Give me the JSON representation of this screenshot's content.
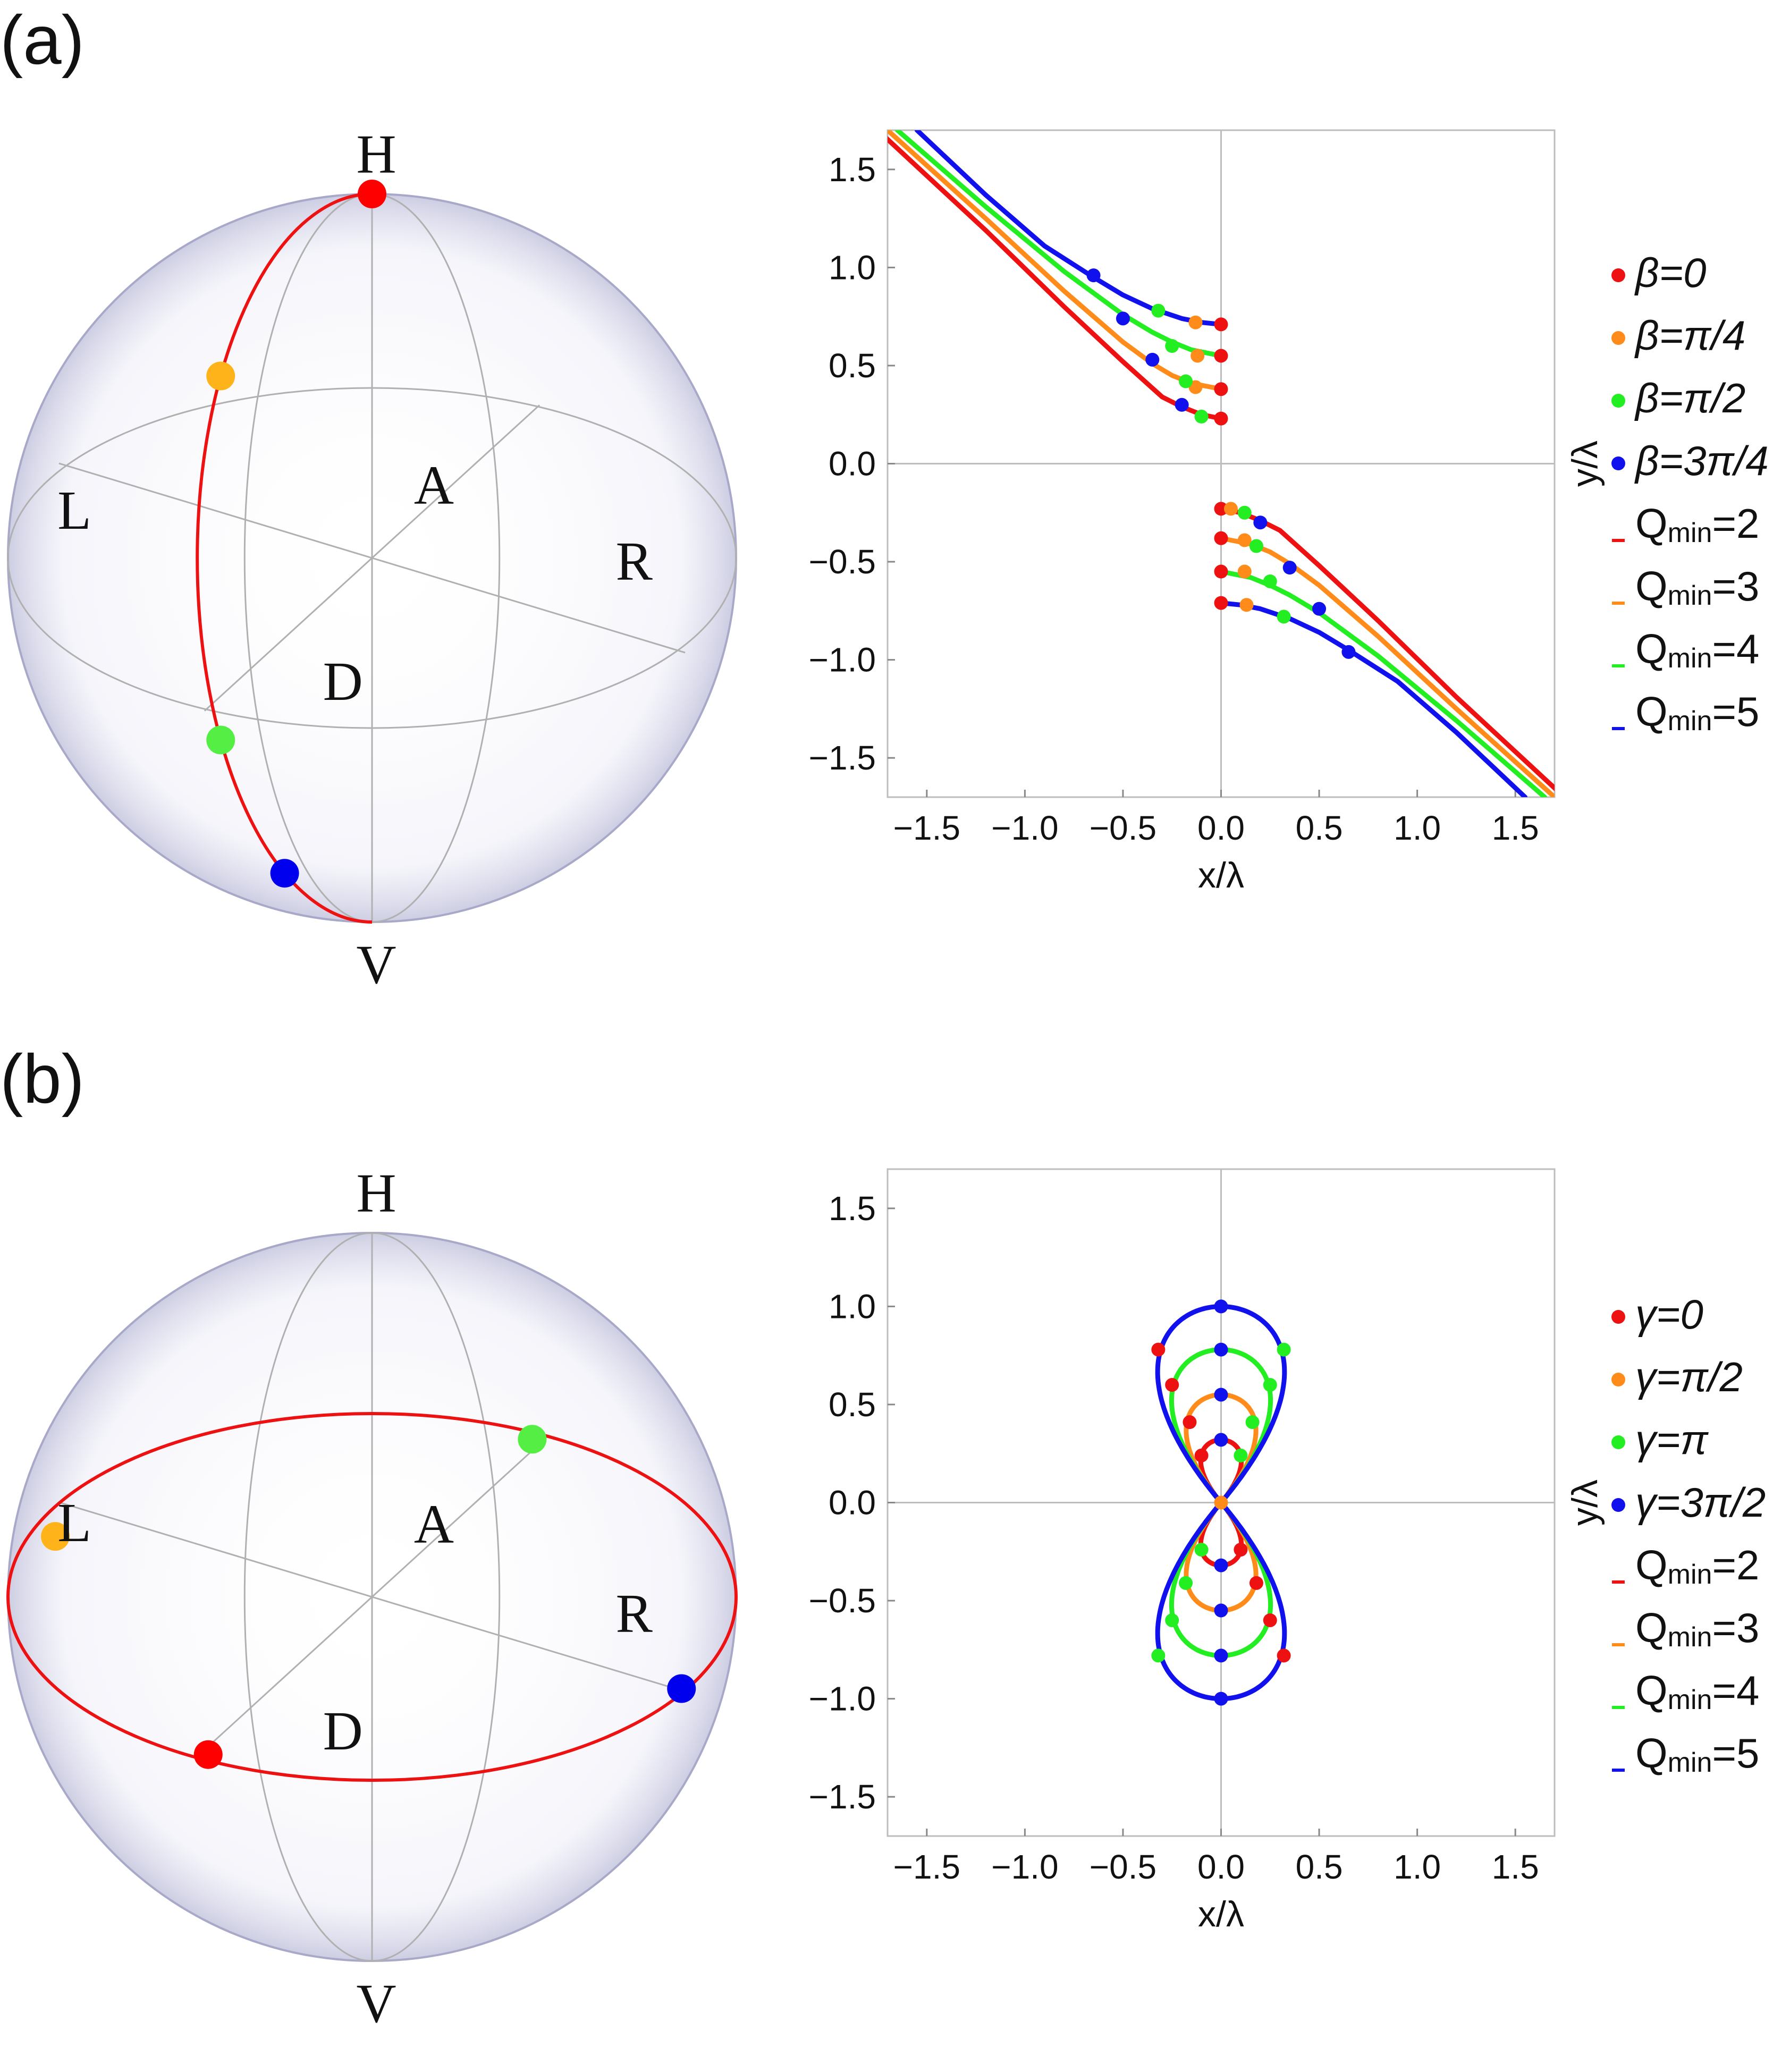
{
  "panels": [
    {
      "label": "(a)",
      "sphere": {
        "labels": {
          "H": "H",
          "V": "V",
          "L": "L",
          "R": "R",
          "A": "A",
          "D": "D"
        },
        "path": "meridian",
        "points": [
          {
            "color": "#ff0000",
            "theta_deg": 0
          },
          {
            "color": "#ffb31a",
            "theta_deg": 60
          },
          {
            "color": "#55ee44",
            "theta_deg": 120
          },
          {
            "color": "#0000ee",
            "theta_deg": 150
          }
        ]
      },
      "chart_data": {
        "type": "scatter",
        "xlabel": "x/λ",
        "ylabel": "y/λ",
        "xlim": [
          -1.7,
          1.7
        ],
        "ylim": [
          -1.7,
          1.7
        ],
        "xticks": [
          "−1.5",
          "−1.0",
          "−0.5",
          "0.0",
          "0.5",
          "1.0",
          "1.5"
        ],
        "yticks": [
          "1.5",
          "1.0",
          "0.5",
          "0.0",
          "−0.5",
          "−1.0",
          "−1.5"
        ],
        "grid": "axes-at-origin",
        "legend_position": "right",
        "legend": [
          {
            "kind": "dot",
            "color": "#ee1111",
            "text": "β=0"
          },
          {
            "kind": "dot",
            "color": "#ff8c1a",
            "text": "β=π/4"
          },
          {
            "kind": "dot",
            "color": "#22ee22",
            "text": "β=π/2"
          },
          {
            "kind": "dot",
            "color": "#1111ee",
            "text": "β=3π/4"
          },
          {
            "kind": "line",
            "color": "#ee1111",
            "text": "Q",
            "sub": "min",
            "suffix": "=2"
          },
          {
            "kind": "line",
            "color": "#ff8c1a",
            "text": "Q",
            "sub": "min",
            "suffix": "=3"
          },
          {
            "kind": "line",
            "color": "#22ee22",
            "text": "Q",
            "sub": "min",
            "suffix": "=4"
          },
          {
            "kind": "line",
            "color": "#1111ee",
            "text": "Q",
            "sub": "min",
            "suffix": "=5"
          }
        ],
        "series": [
          {
            "color": "#ee1111",
            "x": [
              -1.75,
              -1.2,
              -0.8,
              -0.5,
              -0.3,
              -0.2,
              -0.15,
              -0.1,
              -0.05,
              0.0
            ],
            "y": [
              1.7,
              1.19,
              0.8,
              0.52,
              0.34,
              0.29,
              0.27,
              0.25,
              0.24,
              0.23
            ]
          },
          {
            "color": "#ff8c1a",
            "x": [
              -1.7,
              -1.2,
              -0.8,
              -0.5,
              -0.35,
              -0.25,
              -0.15,
              -0.1,
              -0.05,
              0.0
            ],
            "y": [
              1.7,
              1.25,
              0.88,
              0.62,
              0.51,
              0.45,
              0.41,
              0.4,
              0.39,
              0.38
            ]
          },
          {
            "color": "#22ee22",
            "x": [
              -1.65,
              -1.2,
              -0.8,
              -0.5,
              -0.35,
              -0.25,
              -0.15,
              -0.1,
              -0.05,
              0.0
            ],
            "y": [
              1.7,
              1.31,
              0.98,
              0.76,
              0.67,
              0.62,
              0.58,
              0.57,
              0.56,
              0.55
            ]
          },
          {
            "color": "#1111ee",
            "x": [
              -1.55,
              -1.2,
              -0.9,
              -0.65,
              -0.5,
              -0.35,
              -0.2,
              -0.1,
              0.0
            ],
            "y": [
              1.7,
              1.37,
              1.11,
              0.95,
              0.86,
              0.79,
              0.74,
              0.72,
              0.71
            ]
          },
          {
            "color": "#ee1111",
            "x": [
              1.75,
              1.2,
              0.8,
              0.5,
              0.3,
              0.2,
              0.15,
              0.1,
              0.05,
              0.0
            ],
            "y": [
              -1.7,
              -1.19,
              -0.8,
              -0.52,
              -0.34,
              -0.29,
              -0.27,
              -0.25,
              -0.24,
              -0.23
            ]
          },
          {
            "color": "#ff8c1a",
            "x": [
              1.7,
              1.2,
              0.8,
              0.5,
              0.35,
              0.25,
              0.15,
              0.1,
              0.05,
              0.0
            ],
            "y": [
              -1.7,
              -1.25,
              -0.88,
              -0.62,
              -0.51,
              -0.45,
              -0.41,
              -0.4,
              -0.39,
              -0.38
            ]
          },
          {
            "color": "#22ee22",
            "x": [
              1.65,
              1.2,
              0.8,
              0.5,
              0.35,
              0.25,
              0.15,
              0.1,
              0.05,
              0.0
            ],
            "y": [
              -1.7,
              -1.31,
              -0.98,
              -0.76,
              -0.67,
              -0.62,
              -0.58,
              -0.57,
              -0.56,
              -0.55
            ]
          },
          {
            "color": "#1111ee",
            "x": [
              1.55,
              1.2,
              0.9,
              0.65,
              0.5,
              0.35,
              0.2,
              0.1,
              0.0
            ],
            "y": [
              -1.7,
              -1.37,
              -1.11,
              -0.95,
              -0.86,
              -0.79,
              -0.74,
              -0.72,
              -0.71
            ]
          }
        ],
        "points": [
          {
            "color": "#ee1111",
            "x": 0.0,
            "y": 0.23
          },
          {
            "color": "#ee1111",
            "x": 0.0,
            "y": 0.38
          },
          {
            "color": "#ee1111",
            "x": 0.0,
            "y": 0.55
          },
          {
            "color": "#ee1111",
            "x": 0.0,
            "y": 0.71
          },
          {
            "color": "#ff8c1a",
            "x": -0.13,
            "y": 0.39
          },
          {
            "color": "#ff8c1a",
            "x": -0.12,
            "y": 0.55
          },
          {
            "color": "#ff8c1a",
            "x": -0.13,
            "y": 0.72
          },
          {
            "color": "#22ee22",
            "x": -0.1,
            "y": 0.24
          },
          {
            "color": "#22ee22",
            "x": -0.18,
            "y": 0.42
          },
          {
            "color": "#22ee22",
            "x": -0.25,
            "y": 0.6
          },
          {
            "color": "#22ee22",
            "x": -0.32,
            "y": 0.78
          },
          {
            "color": "#1111ee",
            "x": -0.2,
            "y": 0.3
          },
          {
            "color": "#1111ee",
            "x": -0.35,
            "y": 0.53
          },
          {
            "color": "#1111ee",
            "x": -0.5,
            "y": 0.74
          },
          {
            "color": "#1111ee",
            "x": -0.65,
            "y": 0.96
          },
          {
            "color": "#ee1111",
            "x": 0.0,
            "y": -0.23
          },
          {
            "color": "#ee1111",
            "x": 0.0,
            "y": -0.38
          },
          {
            "color": "#ee1111",
            "x": 0.0,
            "y": -0.55
          },
          {
            "color": "#ee1111",
            "x": 0.0,
            "y": -0.71
          },
          {
            "color": "#ff8c1a",
            "x": 0.05,
            "y": -0.23
          },
          {
            "color": "#ff8c1a",
            "x": 0.12,
            "y": -0.39
          },
          {
            "color": "#ff8c1a",
            "x": 0.12,
            "y": -0.55
          },
          {
            "color": "#ff8c1a",
            "x": 0.13,
            "y": -0.72
          },
          {
            "color": "#22ee22",
            "x": 0.12,
            "y": -0.25
          },
          {
            "color": "#22ee22",
            "x": 0.18,
            "y": -0.42
          },
          {
            "color": "#22ee22",
            "x": 0.25,
            "y": -0.6
          },
          {
            "color": "#22ee22",
            "x": 0.32,
            "y": -0.78
          },
          {
            "color": "#1111ee",
            "x": 0.2,
            "y": -0.3
          },
          {
            "color": "#1111ee",
            "x": 0.35,
            "y": -0.53
          },
          {
            "color": "#1111ee",
            "x": 0.5,
            "y": -0.74
          },
          {
            "color": "#1111ee",
            "x": 0.65,
            "y": -0.96
          }
        ]
      }
    },
    {
      "label": "(b)",
      "sphere": {
        "labels": {
          "H": "H",
          "V": "V",
          "L": "L",
          "R": "R",
          "A": "A",
          "D": "D"
        },
        "path": "equator",
        "points": [
          {
            "color": "#ff0000",
            "phi_deg": 0
          },
          {
            "color": "#ffb31a",
            "phi_deg": 90
          },
          {
            "color": "#55ee44",
            "phi_deg": 180
          },
          {
            "color": "#0000ee",
            "phi_deg": 270
          }
        ]
      },
      "chart_data": {
        "type": "line",
        "xlabel": "x/λ",
        "ylabel": "y/λ",
        "xlim": [
          -1.7,
          1.7
        ],
        "ylim": [
          -1.7,
          1.7
        ],
        "xticks": [
          "−1.5",
          "−1.0",
          "−0.5",
          "0.0",
          "0.5",
          "1.0",
          "1.5"
        ],
        "yticks": [
          "1.5",
          "1.0",
          "0.5",
          "0.0",
          "−0.5",
          "−1.0",
          "−1.5"
        ],
        "grid": "axes-at-origin",
        "legend_position": "right",
        "legend": [
          {
            "kind": "dot",
            "color": "#ee1111",
            "text": "γ=0"
          },
          {
            "kind": "dot",
            "color": "#ff8c1a",
            "text": "γ=π/2"
          },
          {
            "kind": "dot",
            "color": "#22ee22",
            "text": "γ=π"
          },
          {
            "kind": "dot",
            "color": "#1111ee",
            "text": "γ=3π/2"
          },
          {
            "kind": "line",
            "color": "#ee1111",
            "text": "Q",
            "sub": "min",
            "suffix": "=2"
          },
          {
            "kind": "line",
            "color": "#ff8c1a",
            "text": "Q",
            "sub": "min",
            "suffix": "=3"
          },
          {
            "kind": "line",
            "color": "#22ee22",
            "text": "Q",
            "sub": "min",
            "suffix": "=4"
          },
          {
            "kind": "line",
            "color": "#1111ee",
            "text": "Q",
            "sub": "min",
            "suffix": "=5"
          }
        ],
        "lobes": [
          {
            "color": "#ee1111",
            "r": 0.32
          },
          {
            "color": "#ff8c1a",
            "r": 0.55
          },
          {
            "color": "#22ee22",
            "r": 0.78
          },
          {
            "color": "#1111ee",
            "r": 1.0
          }
        ],
        "points": [
          {
            "color": "#ff8c1a",
            "x": 0.0,
            "y": 0.0
          },
          {
            "color": "#1111ee",
            "x": 0.0,
            "y": 0.32
          },
          {
            "color": "#1111ee",
            "x": 0.0,
            "y": 0.55
          },
          {
            "color": "#1111ee",
            "x": 0.0,
            "y": 0.78
          },
          {
            "color": "#1111ee",
            "x": 0.0,
            "y": 1.0
          },
          {
            "color": "#1111ee",
            "x": 0.0,
            "y": -0.32
          },
          {
            "color": "#1111ee",
            "x": 0.0,
            "y": -0.55
          },
          {
            "color": "#1111ee",
            "x": 0.0,
            "y": -0.78
          },
          {
            "color": "#1111ee",
            "x": 0.0,
            "y": -1.0
          },
          {
            "color": "#ee1111",
            "x": -0.1,
            "y": 0.24
          },
          {
            "color": "#ee1111",
            "x": -0.16,
            "y": 0.41
          },
          {
            "color": "#ee1111",
            "x": -0.25,
            "y": 0.6
          },
          {
            "color": "#ee1111",
            "x": -0.32,
            "y": 0.78
          },
          {
            "color": "#22ee22",
            "x": 0.1,
            "y": 0.24
          },
          {
            "color": "#22ee22",
            "x": 0.16,
            "y": 0.41
          },
          {
            "color": "#22ee22",
            "x": 0.25,
            "y": 0.6
          },
          {
            "color": "#22ee22",
            "x": 0.32,
            "y": 0.78
          },
          {
            "color": "#22ee22",
            "x": -0.1,
            "y": -0.24
          },
          {
            "color": "#22ee22",
            "x": -0.18,
            "y": -0.41
          },
          {
            "color": "#22ee22",
            "x": -0.25,
            "y": -0.6
          },
          {
            "color": "#22ee22",
            "x": -0.32,
            "y": -0.78
          },
          {
            "color": "#ee1111",
            "x": 0.1,
            "y": -0.24
          },
          {
            "color": "#ee1111",
            "x": 0.18,
            "y": -0.41
          },
          {
            "color": "#ee1111",
            "x": 0.25,
            "y": -0.6
          },
          {
            "color": "#ee1111",
            "x": 0.32,
            "y": -0.78
          }
        ]
      }
    }
  ]
}
